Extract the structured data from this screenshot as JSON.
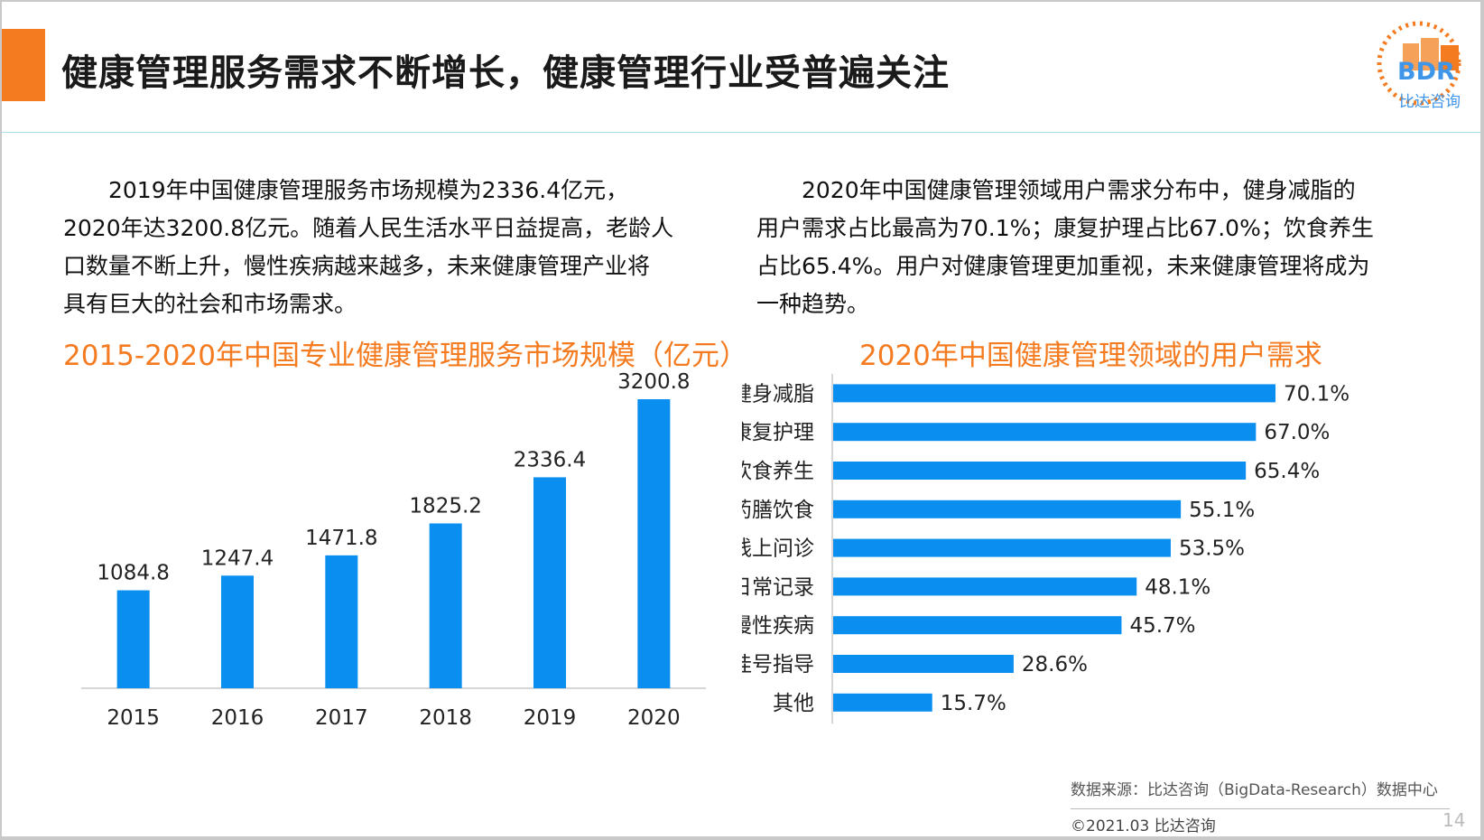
{
  "header": {
    "title": "健康管理服务需求不断增长，健康管理行业受普遍关注",
    "logo_text": "BDR",
    "logo_subtitle": "比达咨询"
  },
  "left_text": {
    "line1": "2019年中国健康管理服务市场规模为2336.4亿元，",
    "line2": "2020年达3200.8亿元。随着人民生活水平日益提高，老龄人",
    "line3": "口数量不断上升，慢性疾病越来越多，未来健康管理产业将",
    "line4": "具有巨大的社会和市场需求。"
  },
  "right_text": {
    "line1": "2020年中国健康管理领域用户需求分布中，健身减脂的",
    "line2": "用户需求占比最高为70.1%；康复护理占比67.0%；饮食养生",
    "line3": "占比65.4%。用户对健康管理更加重视，未来健康管理将成为",
    "line4": "一种趋势。"
  },
  "chart_data": [
    {
      "type": "bar",
      "title": "2015-2020年中国专业健康管理服务市场规模（亿元）",
      "categories": [
        "2015",
        "2016",
        "2017",
        "2018",
        "2019",
        "2020"
      ],
      "values": [
        1084.8,
        1247.4,
        1471.8,
        1825.2,
        2336.4,
        3200.8
      ],
      "value_labels": [
        "1084.8",
        "1247.4",
        "1471.8",
        "1825.2",
        "2336.4",
        "3200.8"
      ],
      "color": "#0a8ff0",
      "grid": false
    },
    {
      "type": "bar",
      "orientation": "horizontal",
      "title": "2020年中国健康管理领域的用户需求",
      "categories": [
        "健身减脂",
        "康复护理",
        "饮食养生",
        "药膳饮食",
        "线上问诊",
        "日常记录",
        "慢性疾病",
        "挂号指导",
        "其他"
      ],
      "values": [
        70.1,
        67.0,
        65.4,
        55.1,
        53.5,
        48.1,
        45.7,
        28.6,
        15.7
      ],
      "value_labels": [
        "70.1%",
        "67.0%",
        "65.4%",
        "55.1%",
        "53.5%",
        "48.1%",
        "45.7%",
        "28.6%",
        "15.7%"
      ],
      "color": "#0a8ff0",
      "grid": false
    }
  ],
  "footer": {
    "source": "数据来源：比达咨询（BigData-Research）数据中心",
    "copyright": "©2021.03 比达咨询",
    "page": "14"
  }
}
